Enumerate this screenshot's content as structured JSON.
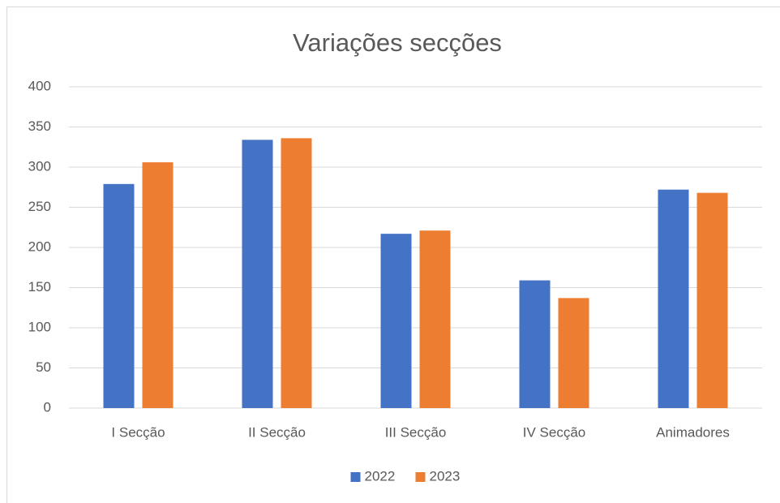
{
  "chart_data": {
    "type": "bar",
    "title": "Variações secções",
    "categories": [
      "I Secção",
      "II Secção",
      "III Secção",
      "IV Secção",
      "Animadores"
    ],
    "series": [
      {
        "name": "2022",
        "color": "#4472c4",
        "values": [
          279,
          334,
          217,
          159,
          272
        ]
      },
      {
        "name": "2023",
        "color": "#ed7d31",
        "values": [
          306,
          336,
          221,
          137,
          268
        ]
      }
    ],
    "ylim": [
      0,
      400
    ],
    "yticks": [
      0,
      50,
      100,
      150,
      200,
      250,
      300,
      350,
      400
    ],
    "grid": true,
    "legend": "bottom"
  }
}
